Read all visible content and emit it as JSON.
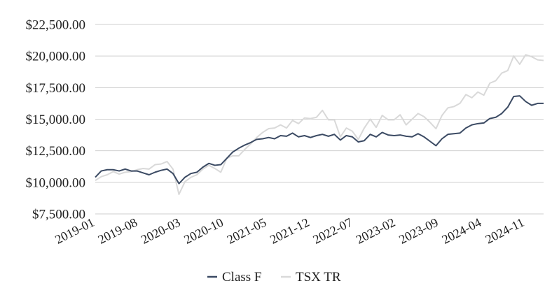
{
  "chart_data": {
    "type": "line",
    "title": "",
    "xlabel": "",
    "ylabel": "",
    "ylim": [
      7500,
      22500
    ],
    "yticks": [
      "$7,500.00",
      "$10,000.00",
      "$12,500.00",
      "$15,000.00",
      "$17,500.00",
      "$20,000.00",
      "$22,500.00"
    ],
    "ytick_values": [
      7500,
      10000,
      12500,
      15000,
      17500,
      20000,
      22500
    ],
    "x_start": "2019-01",
    "x_end": "2025-02",
    "xticks": [
      "2019-01",
      "2019-08",
      "2020-03",
      "2020-10",
      "2021-05",
      "2021-12",
      "2022-07",
      "2023-02",
      "2023-09",
      "2024-04",
      "2024-11"
    ],
    "grid": "horizontal",
    "legend_position": "bottom",
    "series": [
      {
        "name": "Class F",
        "color": "#3b4a63",
        "values": [
          10400,
          10900,
          11000,
          11000,
          10900,
          11050,
          10900,
          10900,
          10750,
          10600,
          10800,
          10950,
          11050,
          10700,
          9900,
          10400,
          10700,
          10800,
          11200,
          11500,
          11350,
          11400,
          11900,
          12400,
          12700,
          12950,
          13150,
          13400,
          13450,
          13550,
          13450,
          13700,
          13650,
          13900,
          13600,
          13700,
          13550,
          13700,
          13800,
          13650,
          13800,
          13350,
          13700,
          13600,
          13200,
          13300,
          13800,
          13600,
          13950,
          13750,
          13700,
          13750,
          13650,
          13600,
          13850,
          13600,
          13250,
          12900,
          13450,
          13800,
          13850,
          13900,
          14300,
          14550,
          14650,
          14700,
          15050,
          15150,
          15450,
          15950,
          16800,
          16850,
          16400,
          16100,
          16250,
          16250
        ]
      },
      {
        "name": "TSX TR",
        "color": "#d9d9d9",
        "values": [
          10150,
          10450,
          10600,
          10850,
          10650,
          10800,
          10850,
          11000,
          11100,
          11050,
          11400,
          11450,
          11650,
          11050,
          9050,
          10050,
          10400,
          10600,
          11050,
          11350,
          11100,
          10800,
          11900,
          12100,
          12100,
          12600,
          13050,
          13550,
          13950,
          14250,
          14300,
          14550,
          14300,
          14900,
          14650,
          15100,
          15050,
          15150,
          15700,
          14950,
          14950,
          13600,
          14300,
          14050,
          13400,
          14300,
          15000,
          14350,
          15300,
          14950,
          14950,
          15350,
          14550,
          15000,
          15450,
          15200,
          14750,
          14250,
          15300,
          15900,
          16000,
          16250,
          16950,
          16700,
          17150,
          16900,
          17850,
          18050,
          18650,
          18850,
          20000,
          19350,
          20100,
          19950,
          19700,
          19650
        ]
      }
    ]
  }
}
